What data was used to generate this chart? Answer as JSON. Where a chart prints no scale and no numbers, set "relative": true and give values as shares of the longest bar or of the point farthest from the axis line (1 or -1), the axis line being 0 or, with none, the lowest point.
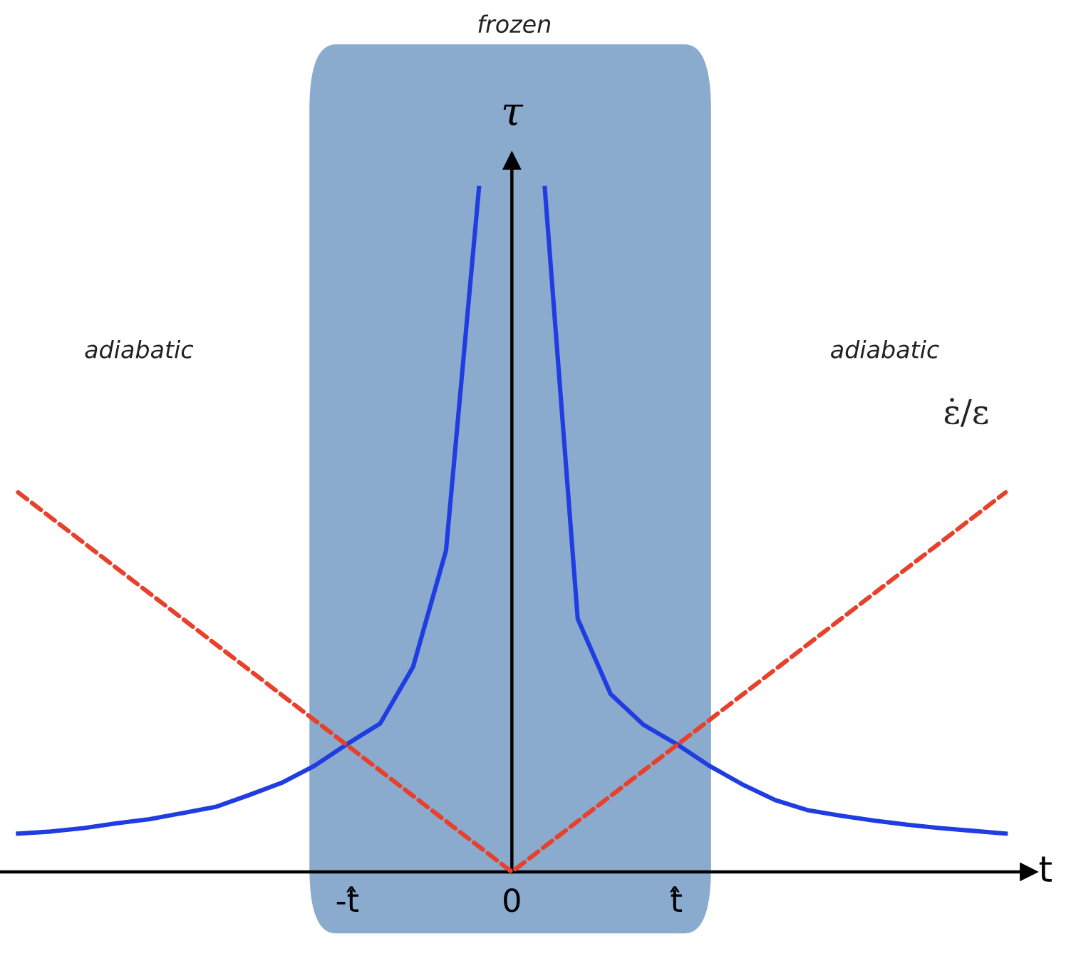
{
  "chart_data": {
    "type": "line",
    "relative": true,
    "xlabel": "t",
    "ylabel": "τ",
    "categories": [
      null,
      null,
      null,
      null,
      null,
      null,
      null,
      null,
      null,
      null,
      "-t̂",
      null,
      null,
      null,
      null,
      "0",
      null,
      null,
      null,
      null,
      "t̂",
      null,
      null,
      null,
      null,
      null,
      null,
      null,
      null,
      null,
      null
    ],
    "series": [
      {
        "color": "#1f3de0",
        "line_style": "solid",
        "values": [
          0.056,
          0.059,
          0.064,
          0.071,
          0.077,
          0.086,
          0.095,
          0.112,
          0.13,
          0.155,
          0.187,
          0.217,
          0.3,
          0.47,
          1.0,
          null,
          null,
          null,
          null,
          null,
          null,
          null,
          null,
          null,
          null,
          null,
          null,
          null,
          null,
          null,
          null
        ]
      },
      {
        "color": "#1f3de0",
        "line_style": "solid",
        "values": [
          null,
          null,
          null,
          null,
          null,
          null,
          null,
          null,
          null,
          null,
          null,
          null,
          null,
          null,
          null,
          null,
          1.0,
          0.37,
          0.26,
          0.215,
          0.187,
          0.155,
          0.128,
          0.105,
          0.09,
          0.082,
          0.075,
          0.069,
          0.064,
          0.06,
          0.056
        ]
      },
      {
        "name": "ε̇/ε",
        "color": "#e8402a",
        "line_style": "dashed",
        "values": [
          0.555,
          0.518,
          0.481,
          0.444,
          0.407,
          0.37,
          0.333,
          0.296,
          0.259,
          0.222,
          0.185,
          0.148,
          0.111,
          0.074,
          0.037,
          0,
          0.037,
          0.074,
          0.111,
          0.148,
          0.185,
          0.222,
          0.259,
          0.296,
          0.333,
          0.37,
          0.407,
          0.444,
          0.481,
          0.518,
          0.555
        ]
      }
    ],
    "annotations": [
      "adiabatic",
      "adiabatic",
      "frozen"
    ]
  }
}
